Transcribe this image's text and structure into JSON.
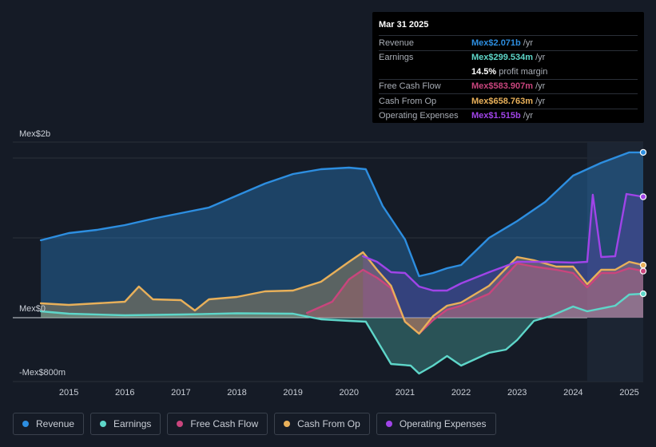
{
  "chart_data": {
    "type": "area",
    "currency_unit": "MXN",
    "y_labels": {
      "top": "Mex$2b",
      "zero": "Mex$0",
      "bottom": "-Mex$800m"
    },
    "ylim": [
      -800,
      2200
    ],
    "xlim": [
      2014.0,
      2025.25
    ],
    "x_ticks": [
      "2015",
      "2016",
      "2017",
      "2018",
      "2019",
      "2020",
      "2021",
      "2022",
      "2023",
      "2024",
      "2025"
    ],
    "forecast_start": 2024.25,
    "series": [
      {
        "name": "Revenue",
        "color": "#2d8ee0",
        "points": [
          [
            2014.5,
            970
          ],
          [
            2015,
            1060
          ],
          [
            2015.5,
            1100
          ],
          [
            2016,
            1160
          ],
          [
            2016.5,
            1240
          ],
          [
            2017,
            1310
          ],
          [
            2017.5,
            1380
          ],
          [
            2018,
            1530
          ],
          [
            2018.5,
            1680
          ],
          [
            2019,
            1800
          ],
          [
            2019.5,
            1860
          ],
          [
            2020,
            1880
          ],
          [
            2020.3,
            1860
          ],
          [
            2020.6,
            1400
          ],
          [
            2021,
            980
          ],
          [
            2021.25,
            520
          ],
          [
            2021.5,
            560
          ],
          [
            2021.75,
            620
          ],
          [
            2022,
            660
          ],
          [
            2022.5,
            1000
          ],
          [
            2023,
            1210
          ],
          [
            2023.5,
            1450
          ],
          [
            2024,
            1780
          ],
          [
            2024.5,
            1940
          ],
          [
            2025,
            2071
          ],
          [
            2025.25,
            2071
          ]
        ]
      },
      {
        "name": "Earnings",
        "color": "#5ed6c9",
        "points": [
          [
            2014.5,
            80
          ],
          [
            2015,
            50
          ],
          [
            2016,
            30
          ],
          [
            2017,
            40
          ],
          [
            2018,
            55
          ],
          [
            2019,
            50
          ],
          [
            2019.5,
            -20
          ],
          [
            2020,
            -40
          ],
          [
            2020.3,
            -50
          ],
          [
            2020.75,
            -580
          ],
          [
            2021.1,
            -600
          ],
          [
            2021.25,
            -700
          ],
          [
            2021.5,
            -600
          ],
          [
            2021.75,
            -480
          ],
          [
            2022,
            -600
          ],
          [
            2022.5,
            -440
          ],
          [
            2022.8,
            -400
          ],
          [
            2023,
            -280
          ],
          [
            2023.3,
            -40
          ],
          [
            2023.6,
            20
          ],
          [
            2024,
            140
          ],
          [
            2024.25,
            80
          ],
          [
            2024.75,
            150
          ],
          [
            2025,
            290
          ],
          [
            2025.25,
            299.534
          ]
        ]
      },
      {
        "name": "Free Cash Flow",
        "color": "#c9457d",
        "points": [
          [
            2019.25,
            60
          ],
          [
            2019.7,
            200
          ],
          [
            2020,
            480
          ],
          [
            2020.25,
            600
          ],
          [
            2020.5,
            500
          ],
          [
            2020.75,
            370
          ],
          [
            2021,
            -50
          ],
          [
            2021.25,
            -200
          ],
          [
            2021.5,
            -30
          ],
          [
            2021.75,
            100
          ],
          [
            2022,
            150
          ],
          [
            2022.5,
            300
          ],
          [
            2023,
            680
          ],
          [
            2023.3,
            640
          ],
          [
            2023.7,
            600
          ],
          [
            2024,
            560
          ],
          [
            2024.25,
            380
          ],
          [
            2024.5,
            560
          ],
          [
            2024.75,
            560
          ],
          [
            2025,
            620
          ],
          [
            2025.25,
            583.907
          ]
        ]
      },
      {
        "name": "Cash From Op",
        "color": "#e8b05a",
        "points": [
          [
            2014.5,
            180
          ],
          [
            2015,
            160
          ],
          [
            2015.5,
            180
          ],
          [
            2016,
            200
          ],
          [
            2016.25,
            390
          ],
          [
            2016.5,
            230
          ],
          [
            2017,
            220
          ],
          [
            2017.25,
            90
          ],
          [
            2017.5,
            230
          ],
          [
            2018,
            260
          ],
          [
            2018.5,
            330
          ],
          [
            2019,
            340
          ],
          [
            2019.5,
            450
          ],
          [
            2020,
            700
          ],
          [
            2020.25,
            820
          ],
          [
            2020.5,
            600
          ],
          [
            2020.75,
            400
          ],
          [
            2021,
            -50
          ],
          [
            2021.25,
            -200
          ],
          [
            2021.5,
            20
          ],
          [
            2021.75,
            150
          ],
          [
            2022,
            190
          ],
          [
            2022.5,
            400
          ],
          [
            2023,
            760
          ],
          [
            2023.3,
            720
          ],
          [
            2023.7,
            640
          ],
          [
            2024,
            640
          ],
          [
            2024.25,
            420
          ],
          [
            2024.5,
            600
          ],
          [
            2024.75,
            600
          ],
          [
            2025,
            700
          ],
          [
            2025.25,
            658.763
          ]
        ]
      },
      {
        "name": "Operating Expenses",
        "color": "#a044e8",
        "points": [
          [
            2020.25,
            770
          ],
          [
            2020.5,
            700
          ],
          [
            2020.75,
            570
          ],
          [
            2021,
            560
          ],
          [
            2021.25,
            390
          ],
          [
            2021.5,
            340
          ],
          [
            2021.75,
            340
          ],
          [
            2022,
            430
          ],
          [
            2022.5,
            570
          ],
          [
            2023,
            700
          ],
          [
            2023.5,
            700
          ],
          [
            2024,
            690
          ],
          [
            2024.25,
            700
          ],
          [
            2024.35,
            1540
          ],
          [
            2024.5,
            760
          ],
          [
            2024.75,
            770
          ],
          [
            2024.95,
            1550
          ],
          [
            2025.25,
            1515
          ]
        ]
      }
    ]
  },
  "tooltip": {
    "date": "Mar 31 2025",
    "rows": [
      {
        "label": "Revenue",
        "value": "Mex$2.071b",
        "unit": "/yr",
        "color": "#2d8ee0"
      },
      {
        "label": "Earnings",
        "value": "Mex$299.534m",
        "unit": "/yr",
        "color": "#5ed6c9"
      },
      {
        "label": "",
        "value": "14.5%",
        "unit": "profit margin",
        "color": "#ffffff"
      },
      {
        "label": "Free Cash Flow",
        "value": "Mex$583.907m",
        "unit": "/yr",
        "color": "#c9457d"
      },
      {
        "label": "Cash From Op",
        "value": "Mex$658.763m",
        "unit": "/yr",
        "color": "#e8b05a"
      },
      {
        "label": "Operating Expenses",
        "value": "Mex$1.515b",
        "unit": "/yr",
        "color": "#a044e8"
      }
    ]
  },
  "legend": [
    {
      "label": "Revenue",
      "color": "#2d8ee0"
    },
    {
      "label": "Earnings",
      "color": "#5ed6c9"
    },
    {
      "label": "Free Cash Flow",
      "color": "#c9457d"
    },
    {
      "label": "Cash From Op",
      "color": "#e8b05a"
    },
    {
      "label": "Operating Expenses",
      "color": "#a044e8"
    }
  ]
}
